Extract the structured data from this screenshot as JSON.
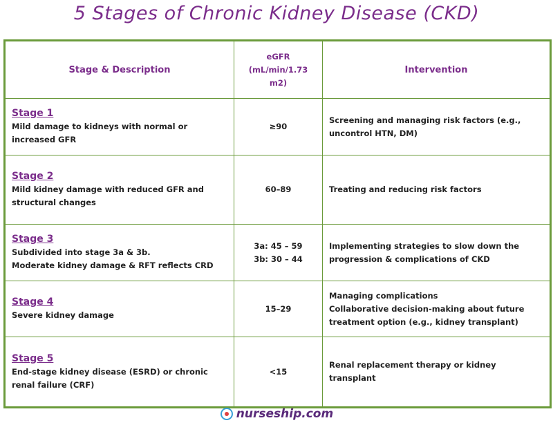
{
  "title": "5 Stages of  Chronic Kidney Disease (CKD)",
  "table": {
    "headers": [
      "Stage & Description",
      "eGFR (mL/min/1.73 m2)",
      "Intervention"
    ],
    "rows": [
      {
        "stage": "Stage 1",
        "description": [
          "Mild damage to kidneys with normal or increased GFR"
        ],
        "egfr": [
          "≥90"
        ],
        "intervention": [
          "Screening and managing risk factors (e.g., uncontrol HTN, DM)"
        ]
      },
      {
        "stage": "Stage 2",
        "description": [
          "Mild  kidney damage with reduced GFR and structural changes"
        ],
        "egfr": [
          "60–89"
        ],
        "intervention": [
          "Treating and reducing risk factors"
        ]
      },
      {
        "stage": "Stage 3",
        "description": [
          "Subdivided into stage 3a & 3b.",
          "Moderate kidney damage & RFT reflects CRD"
        ],
        "egfr": [
          "3a: 45 – 59",
          "3b: 30 – 44"
        ],
        "intervention": [
          "Implementing strategies to slow down the progression & complications of CKD"
        ]
      },
      {
        "stage": "Stage 4",
        "description": [
          "Severe kidney damage"
        ],
        "egfr": [
          "15–29"
        ],
        "intervention": [
          "Managing complications",
          "Collaborative decision-making about future treatment option (e.g., kidney transplant)"
        ]
      },
      {
        "stage": "Stage 5",
        "description": [
          "End-stage kidney disease  (ESRD)  or chronic renal failure (CRF)"
        ],
        "egfr": [
          "<15"
        ],
        "intervention": [
          "Renal replacement therapy or kidney transplant"
        ]
      }
    ]
  },
  "footer": {
    "site": "nurseship.com"
  }
}
